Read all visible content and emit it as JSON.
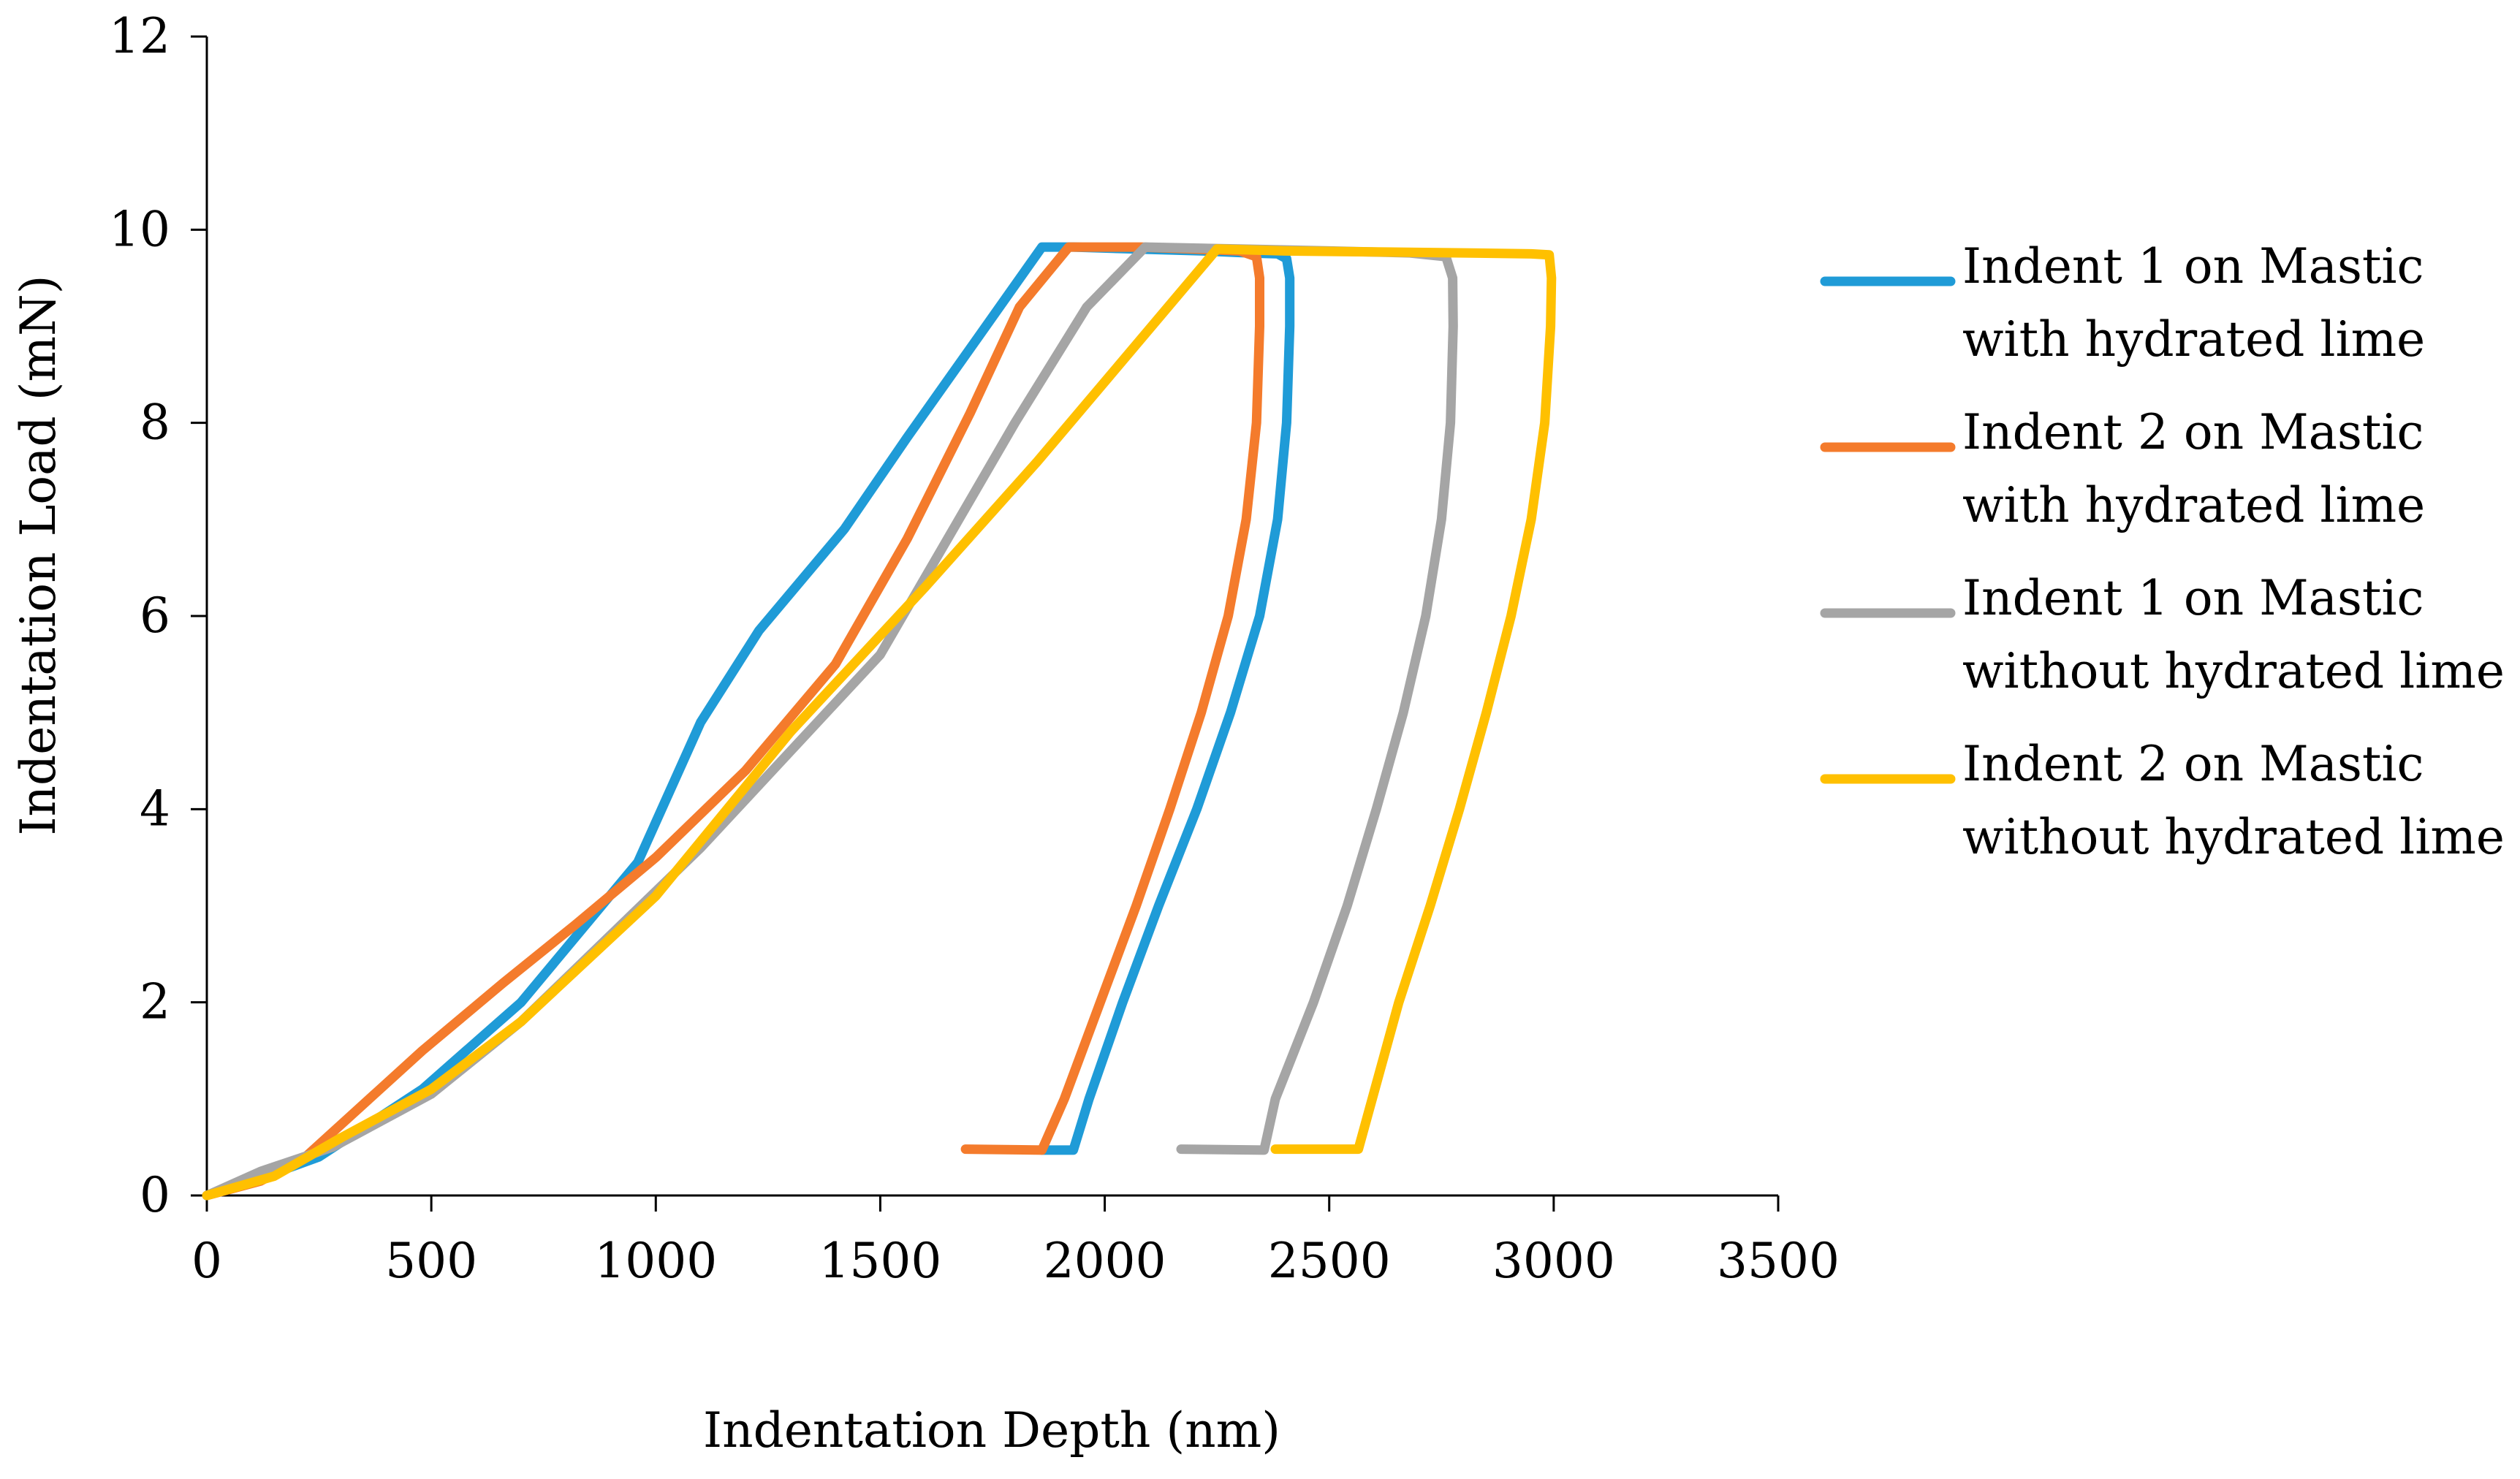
{
  "chart_data": {
    "type": "line",
    "title": "",
    "xlabel": "Indentation Depth (nm)",
    "ylabel": "Indentation Load (mN)",
    "xlim": [
      0,
      3500
    ],
    "ylim": [
      0,
      12
    ],
    "xticks": [
      0,
      500,
      1000,
      1500,
      2000,
      2500,
      3000,
      3500
    ],
    "yticks": [
      0,
      2,
      4,
      6,
      8,
      10,
      12
    ],
    "grid": false,
    "legend_position": "right",
    "series": [
      {
        "name_line1": "Indent 1 on Mastic",
        "name_line2": "with hydrated lime",
        "color": "#1f9bd7",
        "x": [
          0,
          120,
          250,
          480,
          700,
          960,
          1100,
          1230,
          1420,
          1560,
          1720,
          1860,
          1930,
          2070,
          2220,
          2320,
          2385,
          2405,
          2412,
          2412,
          2405,
          2385,
          2345,
          2280,
          2205,
          2120,
          2040,
          1965,
          1930,
          1860
        ],
        "y": [
          0,
          0.18,
          0.4,
          1.1,
          2.0,
          3.45,
          4.9,
          5.85,
          6.9,
          7.85,
          8.9,
          9.82,
          9.82,
          9.8,
          9.78,
          9.76,
          9.75,
          9.7,
          9.5,
          9.0,
          8.0,
          7.0,
          6.0,
          5.0,
          4.0,
          3.0,
          2.0,
          1.0,
          0.47,
          0.47
        ]
      },
      {
        "name_line1": "Indent 2 on Mastic",
        "name_line2": "with hydrated lime",
        "color": "#f47b2c",
        "x": [
          0,
          120,
          220,
          480,
          660,
          820,
          1000,
          1200,
          1400,
          1560,
          1700,
          1810,
          1920,
          2080,
          2200,
          2300,
          2338,
          2345,
          2345,
          2338,
          2315,
          2275,
          2215,
          2145,
          2070,
          1990,
          1910,
          1860,
          1690
        ],
        "y": [
          0,
          0.15,
          0.4,
          1.5,
          2.2,
          2.8,
          3.5,
          4.4,
          5.5,
          6.8,
          8.1,
          9.2,
          9.82,
          9.82,
          9.8,
          9.78,
          9.72,
          9.5,
          9.0,
          8.0,
          7.0,
          6.0,
          5.0,
          4.0,
          3.0,
          2.0,
          1.0,
          0.47,
          0.48
        ]
      },
      {
        "name_line1": "Indent 1 on Mastic",
        "name_line2": "without hydrated lime",
        "color": "#a5a5a5",
        "x": [
          0,
          120,
          280,
          500,
          700,
          900,
          1100,
          1300,
          1500,
          1650,
          1800,
          1960,
          2090,
          2300,
          2500,
          2680,
          2760,
          2775,
          2776,
          2770,
          2750,
          2715,
          2665,
          2605,
          2540,
          2465,
          2380,
          2355,
          2170
        ],
        "y": [
          0,
          0.25,
          0.5,
          1.05,
          1.8,
          2.7,
          3.6,
          4.6,
          5.6,
          6.8,
          8.0,
          9.2,
          9.82,
          9.8,
          9.78,
          9.76,
          9.72,
          9.5,
          9.0,
          8.0,
          7.0,
          6.0,
          5.0,
          4.0,
          3.0,
          2.0,
          1.0,
          0.47,
          0.48
        ]
      },
      {
        "name_line1": "Indent 2 on Mastic",
        "name_line2": "without hydrated lime",
        "color": "#ffc000",
        "x": [
          0,
          150,
          300,
          500,
          700,
          1000,
          1300,
          1600,
          1850,
          2050,
          2250,
          2400,
          2600,
          2800,
          2950,
          2990,
          2995,
          2993,
          2980,
          2950,
          2905,
          2850,
          2790,
          2725,
          2655,
          2565,
          2380
        ],
        "y": [
          0,
          0.2,
          0.6,
          1.1,
          1.8,
          3.1,
          4.8,
          6.3,
          7.6,
          8.7,
          9.8,
          9.78,
          9.77,
          9.76,
          9.75,
          9.74,
          9.5,
          9.0,
          8.0,
          7.0,
          6.0,
          5.0,
          4.0,
          3.0,
          2.0,
          0.48,
          0.48
        ]
      }
    ]
  }
}
